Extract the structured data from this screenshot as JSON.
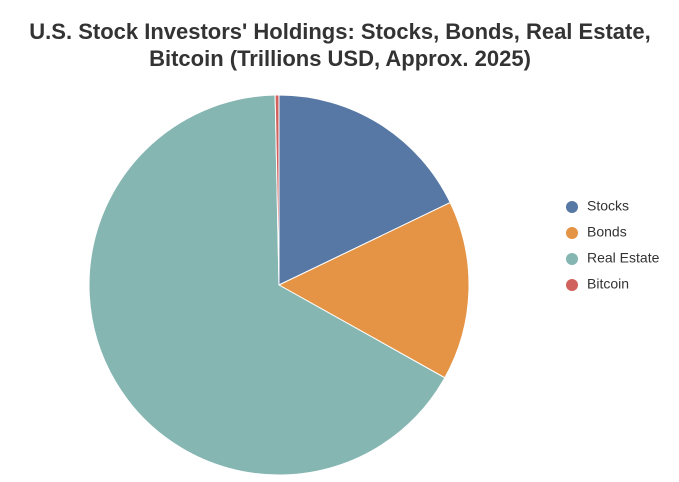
{
  "chart_data": {
    "type": "pie",
    "title": "U.S. Stock Investors' Holdings: Stocks, Bonds, Real Estate, Bitcoin (Trillions USD, Approx. 2025)",
    "categories": [
      "Stocks",
      "Bonds",
      "Real Estate",
      "Bitcoin"
    ],
    "values": [
      55,
      47,
      205,
      1
    ],
    "colors": [
      "#5778a4",
      "#e49444",
      "#85b6b2",
      "#d1615d"
    ],
    "legend": "right"
  }
}
